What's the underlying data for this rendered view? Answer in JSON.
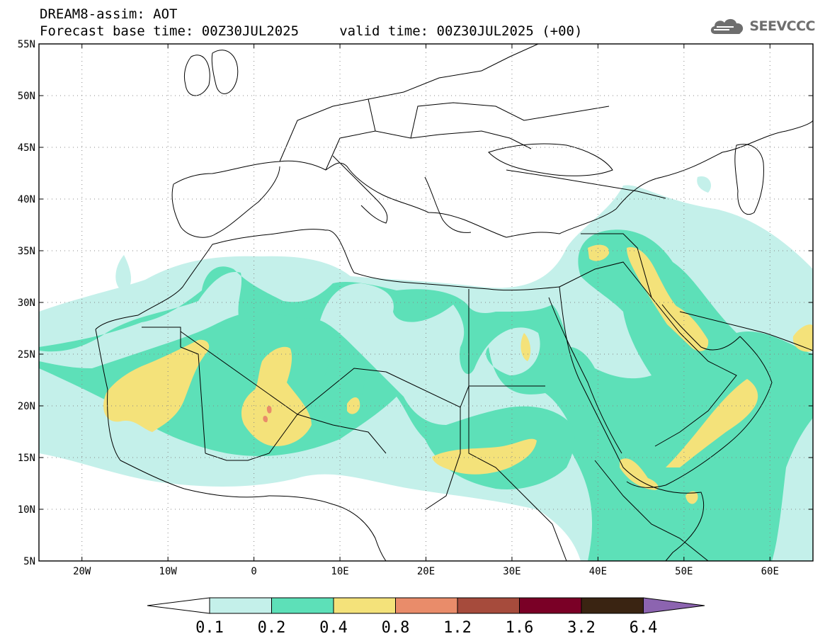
{
  "header": {
    "title_line1": "DREAM8-assim: AOT",
    "title_line2": "Forecast base time: 00Z30JUL2025     valid time: 00Z30JUL2025 (+00)"
  },
  "logo": {
    "text": "SEEVCCC",
    "icon": "cloud-icon",
    "color": "#6e6e6e"
  },
  "map": {
    "lon_range": [
      -25,
      65
    ],
    "lat_range": [
      5,
      55
    ],
    "grid": "dotted",
    "lat_ticks": [
      {
        "value": 55,
        "label": "55N"
      },
      {
        "value": 50,
        "label": "50N"
      },
      {
        "value": 45,
        "label": "45N"
      },
      {
        "value": 40,
        "label": "40N"
      },
      {
        "value": 35,
        "label": "35N"
      },
      {
        "value": 30,
        "label": "30N"
      },
      {
        "value": 25,
        "label": "25N"
      },
      {
        "value": 20,
        "label": "20N"
      },
      {
        "value": 15,
        "label": "15N"
      },
      {
        "value": 10,
        "label": "10N"
      },
      {
        "value": 5,
        "label": "5N"
      }
    ],
    "lon_ticks": [
      {
        "value": -20,
        "label": "20W"
      },
      {
        "value": -10,
        "label": "10W"
      },
      {
        "value": 0,
        "label": "0"
      },
      {
        "value": 10,
        "label": "10E"
      },
      {
        "value": 20,
        "label": "20E"
      },
      {
        "value": 30,
        "label": "30E"
      },
      {
        "value": 40,
        "label": "40E"
      },
      {
        "value": 50,
        "label": "50E"
      },
      {
        "value": 60,
        "label": "60E"
      }
    ],
    "colors": {
      "c01": "#c4f0ea",
      "c02": "#5de0b8",
      "c04": "#f4e27a",
      "c08": "#e98c6a",
      "coast": "#000000",
      "border": "#000000"
    }
  },
  "colorbar": {
    "labels": [
      "0.1",
      "0.2",
      "0.4",
      "0.8",
      "1.2",
      "1.6",
      "3.2",
      "6.4"
    ],
    "colors": [
      "#ffffff",
      "#c4f0ea",
      "#5de0b8",
      "#f4e27a",
      "#e98c6a",
      "#a64b3c",
      "#7a0026",
      "#3a2412",
      "#8c64b0"
    ]
  }
}
